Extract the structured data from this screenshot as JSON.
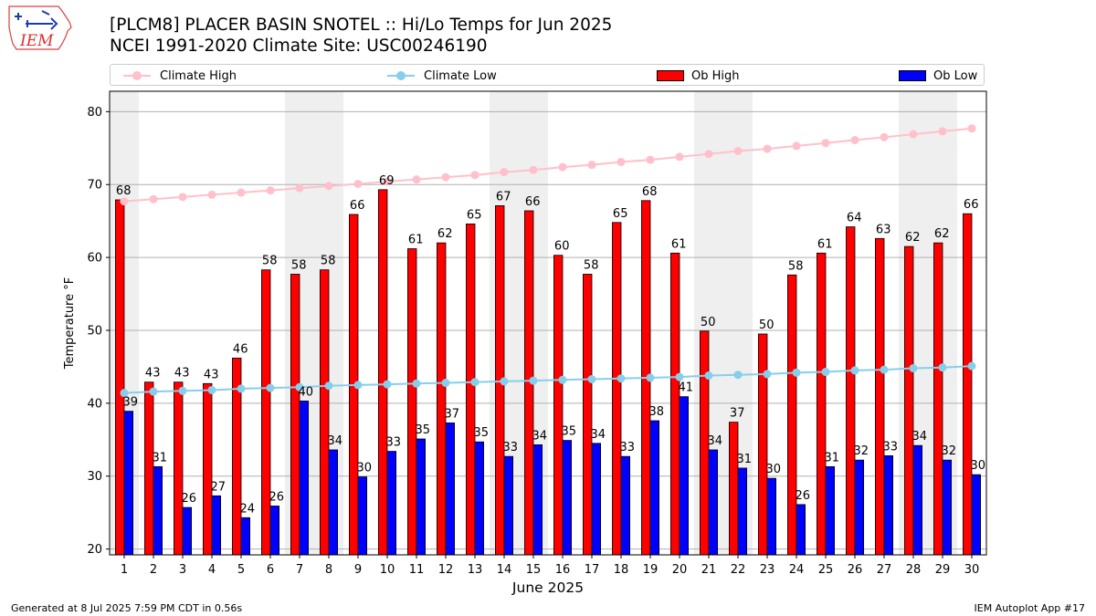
{
  "header": {
    "title_line1": "[PLCM8] PLACER BASIN SNOTEL :: Hi/Lo Temps for Jun 2025",
    "title_line2": "NCEI 1991-2020 Climate Site: USC00246190"
  },
  "logo": {
    "text": "IEM"
  },
  "footer": {
    "left": "Generated at 8 Jul 2025 7:59 PM CDT in 0.56s",
    "right": "IEM Autoplot App #17"
  },
  "legend": {
    "items": [
      {
        "label": "Climate High",
        "color": "#ffc0cb",
        "kind": "line"
      },
      {
        "label": "Climate Low",
        "color": "#87ceeb",
        "kind": "line"
      },
      {
        "label": "Ob High",
        "color": "#ff0000",
        "kind": "bar"
      },
      {
        "label": "Ob Low",
        "color": "#0000ff",
        "kind": "bar"
      }
    ]
  },
  "chart_data": {
    "type": "bar",
    "xlabel": "June 2025",
    "ylabel": "Temperature °F",
    "ylim": [
      19.2,
      82.8
    ],
    "yticks": [
      20,
      30,
      40,
      50,
      60,
      70,
      80
    ],
    "grid": "horizontal",
    "legend_position": "top",
    "categories": [
      "1",
      "2",
      "3",
      "4",
      "5",
      "6",
      "7",
      "8",
      "9",
      "10",
      "11",
      "12",
      "13",
      "14",
      "15",
      "16",
      "17",
      "18",
      "19",
      "20",
      "21",
      "22",
      "23",
      "24",
      "25",
      "26",
      "27",
      "28",
      "29",
      "30"
    ],
    "weekend_days": [
      1,
      7,
      8,
      14,
      15,
      21,
      22,
      28,
      29
    ],
    "series": [
      {
        "name": "Ob High",
        "type": "bar",
        "color": "#ff0000",
        "values": [
          67.9,
          42.9,
          42.9,
          42.7,
          46.2,
          58.3,
          57.7,
          58.3,
          65.9,
          69.3,
          61.2,
          62.0,
          64.6,
          67.1,
          66.4,
          60.3,
          57.7,
          64.8,
          67.8,
          60.6,
          49.9,
          37.4,
          49.5,
          57.6,
          60.6,
          64.2,
          62.6,
          61.5,
          62.0,
          66.0
        ]
      },
      {
        "name": "Ob Low",
        "type": "bar",
        "color": "#0000ff",
        "values": [
          38.9,
          31.3,
          25.7,
          27.3,
          24.3,
          25.9,
          40.3,
          33.6,
          29.9,
          33.4,
          35.1,
          37.3,
          34.7,
          32.7,
          34.3,
          34.9,
          34.5,
          32.7,
          37.6,
          40.9,
          33.6,
          31.1,
          29.7,
          26.1,
          31.3,
          32.2,
          32.8,
          34.2,
          32.2,
          30.2
        ]
      },
      {
        "name": "Climate High",
        "type": "line",
        "color": "#ffc0cb",
        "values": [
          67.7,
          68.0,
          68.3,
          68.6,
          68.9,
          69.2,
          69.5,
          69.8,
          70.1,
          70.4,
          70.7,
          71.0,
          71.3,
          71.7,
          72.0,
          72.4,
          72.7,
          73.1,
          73.4,
          73.8,
          74.2,
          74.6,
          74.9,
          75.3,
          75.7,
          76.1,
          76.5,
          76.9,
          77.3,
          77.7
        ]
      },
      {
        "name": "Climate Low",
        "type": "line",
        "color": "#87ceeb",
        "values": [
          41.4,
          41.6,
          41.7,
          41.8,
          42.0,
          42.1,
          42.2,
          42.4,
          42.5,
          42.6,
          42.7,
          42.8,
          42.9,
          43.0,
          43.1,
          43.2,
          43.3,
          43.4,
          43.5,
          43.6,
          43.8,
          43.9,
          44.0,
          44.2,
          44.3,
          44.5,
          44.6,
          44.8,
          44.9,
          45.1
        ]
      }
    ],
    "bar_labels": {
      "Ob High": [
        "68",
        "43",
        "43",
        "43",
        "46",
        "58",
        "58",
        "58",
        "66",
        "69",
        "61",
        "62",
        "65",
        "67",
        "66",
        "60",
        "58",
        "65",
        "68",
        "61",
        "50",
        "37",
        "50",
        "58",
        "61",
        "64",
        "63",
        "62",
        "62",
        "66"
      ],
      "Ob Low": [
        "39",
        "31",
        "26",
        "27",
        "24",
        "26",
        "40",
        "34",
        "30",
        "33",
        "35",
        "37",
        "35",
        "33",
        "34",
        "35",
        "34",
        "33",
        "38",
        "41",
        "34",
        "31",
        "30",
        "26",
        "31",
        "32",
        "33",
        "34",
        "32",
        "30"
      ]
    }
  }
}
